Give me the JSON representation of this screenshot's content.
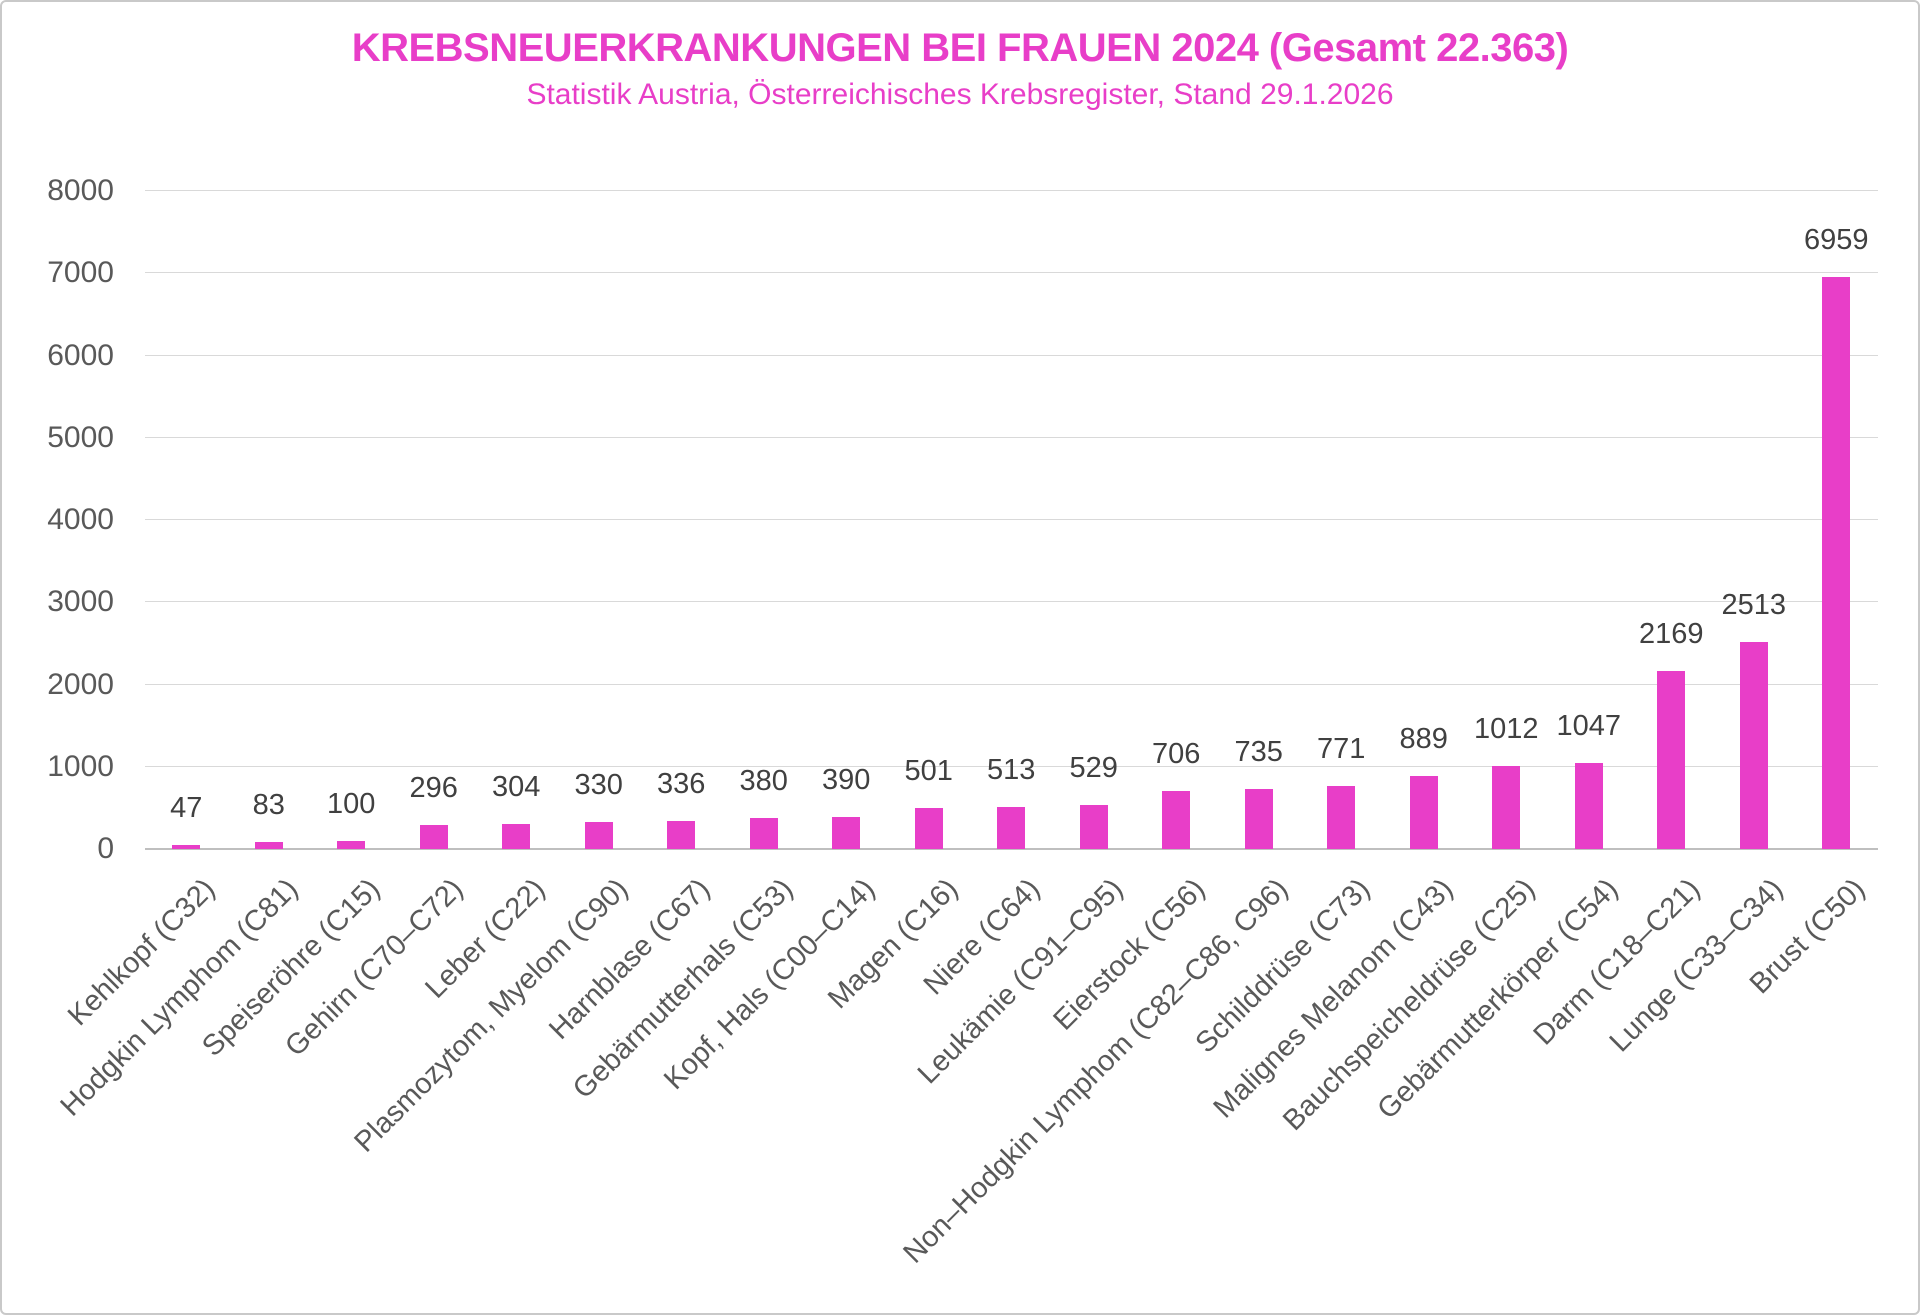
{
  "chart": {
    "title": "KREBSNEUERKRANKUNGEN BEI FRAUEN 2024 (Gesamt 22.363)",
    "subtitle": "Statistik Austria, Österreichisches Krebsregister, Stand 29.1.2026",
    "colors": {
      "accent_pink": "#e83ec8",
      "value_label_gray": "#404040",
      "axis_label_gray": "#595959",
      "gridline_gray": "#d9d9d9"
    }
  },
  "chart_data": {
    "type": "bar",
    "title": "KREBSNEUERKRANKUNGEN BEI FRAUEN 2024 (Gesamt 22.363)",
    "subtitle": "Statistik Austria, Österreichisches Krebsregister, Stand 29.1.2026",
    "total_label": "Gesamt 22.363",
    "categories": [
      "Kehlkopf (C32)",
      "Hodgkin Lymphom (C81)",
      "Speiseröhre (C15)",
      "Gehirn (C70–C72)",
      "Leber (C22)",
      "Plasmozytom, Myelom (C90)",
      "Harnblase (C67)",
      "Gebärmutterhals (C53)",
      "Kopf, Hals (C00–C14)",
      "Magen (C16)",
      "Niere (C64)",
      "Leukämie (C91–C95)",
      "Eierstock (C56)",
      "Non–Hodgkin Lymphom (C82–C86, C96)",
      "Schilddrüse (C73)",
      "Malignes Melanom (C43)",
      "Bauchspeicheldrüse (C25)",
      "Gebärmutterkörper (C54)",
      "Darm (C18–C21)",
      "Lunge (C33–C34)",
      "Brust (C50)"
    ],
    "values": [
      47,
      83,
      100,
      296,
      304,
      330,
      336,
      380,
      390,
      501,
      513,
      529,
      706,
      735,
      771,
      889,
      1012,
      1047,
      2169,
      2513,
      6959
    ],
    "xlabel": "",
    "ylabel": "",
    "ylim": [
      0,
      8000
    ],
    "yticks": [
      0,
      1000,
      2000,
      3000,
      4000,
      5000,
      6000,
      7000,
      8000
    ],
    "grid": true,
    "legend_position": "none",
    "data_labels": true,
    "bar_color": "#e83ec8"
  }
}
